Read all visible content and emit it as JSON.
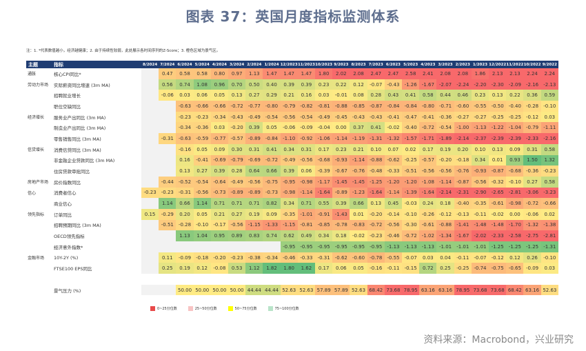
{
  "title": "图表 37：英国月度指标监测体系",
  "note": "注：1. *代表数值越小，经济越健康；2. 由于持续性较弱，此处展示各时间序列的Z-Score；3. 橙色区域为景气区。",
  "header": {
    "category": "主题",
    "indicator": "指标",
    "months": [
      "8/2024",
      "7/2024",
      "6/2024",
      "5/2024",
      "4/2024",
      "3/2024",
      "2/2024",
      "1/2024",
      "12/2023",
      "11/2023",
      "10/2023",
      "9/2023",
      "8/2023",
      "7/2023",
      "6/2023",
      "5/2023",
      "4/2023",
      "3/2023",
      "2/2023",
      "1/2023",
      "12/2022",
      "11/2022",
      "10/2022",
      "9/2022"
    ]
  },
  "colors": {
    "header_bg": "#1f3d73",
    "low": "#f8696b",
    "mid": "#ffeb84",
    "high": "#63be7b",
    "blank": "#f2f2f2"
  },
  "rows": [
    {
      "category": "通胀",
      "indicator": "核心CPI同比*",
      "lower_is_better": true,
      "values": [
        null,
        0.47,
        0.58,
        0.58,
        0.8,
        0.97,
        1.13,
        1.47,
        1.47,
        1.47,
        1.8,
        2.02,
        2.08,
        2.47,
        2.47,
        2.58,
        2.41,
        2.08,
        2.08,
        1.86,
        2.13,
        2.13,
        2.24,
        2.24
      ]
    },
    {
      "category": "劳动力市场",
      "indicator": "实际薪资同比增速 (3m MA)",
      "values": [
        null,
        0.56,
        0.74,
        1.08,
        0.96,
        0.7,
        0.5,
        0.4,
        0.39,
        0.39,
        0.23,
        0.22,
        0.12,
        -0.07,
        -0.43,
        -1.26,
        -1.67,
        -2.07,
        -2.24,
        -2.2,
        -2.3,
        -2.09,
        -2.16,
        -2.13
      ]
    },
    {
      "category": "",
      "indicator": "招聘就业增长",
      "values": [
        null,
        -0.06,
        0.03,
        0.06,
        0.05,
        0.13,
        0.27,
        0.29,
        0.21,
        0.16,
        0.03,
        -0.01,
        0.08,
        0.28,
        0.43,
        0.41,
        0.58,
        0.44,
        0.46,
        0.23,
        0.13,
        0.22,
        0.36,
        0.59
      ]
    },
    {
      "category": "",
      "indicator": "职位空缺同比",
      "values": [
        null,
        null,
        -0.63,
        -0.66,
        -0.66,
        -0.72,
        -0.77,
        -0.8,
        -0.79,
        -0.82,
        -0.81,
        -0.88,
        -0.85,
        -0.87,
        -0.84,
        -0.84,
        -0.8,
        -0.71,
        -0.6,
        -0.55,
        -0.5,
        -0.4,
        -0.28,
        -0.1
      ]
    },
    {
      "category": "经济增长",
      "indicator": "服务业产出同比 (3m MA)",
      "values": [
        null,
        null,
        -0.23,
        -0.23,
        -0.34,
        -0.43,
        -0.49,
        -0.54,
        -0.56,
        -0.54,
        -0.49,
        -0.45,
        -0.43,
        -0.43,
        -0.41,
        -0.47,
        -0.41,
        -0.36,
        -0.27,
        -0.27,
        -0.25,
        -0.25,
        -0.12,
        0.03
      ]
    },
    {
      "category": "",
      "indicator": "制造业产出同比 (3m MA)",
      "values": [
        null,
        null,
        -0.34,
        -0.36,
        0.03,
        -0.2,
        0.39,
        0.05,
        -0.06,
        -0.09,
        -0.04,
        0.0,
        0.37,
        0.41,
        -0.02,
        -0.4,
        -0.72,
        -0.54,
        -1.0,
        -1.13,
        -1.22,
        -1.04,
        -0.79,
        -1.11
      ]
    },
    {
      "category": "",
      "indicator": "零售销售同比 (3m MA)",
      "values": [
        null,
        -0.31,
        -0.63,
        -0.59,
        -0.77,
        -0.57,
        -0.89,
        -0.84,
        -1.1,
        -0.92,
        -1.06,
        -1.14,
        -1.19,
        -1.31,
        -1.32,
        -1.57,
        -1.71,
        -1.89,
        -2.14,
        -2.37,
        -2.39,
        -2.39,
        -2.33,
        -2.16
      ]
    },
    {
      "category": "信贷增长",
      "indicator": "消费信贷同比 (3m MA)",
      "values": [
        null,
        null,
        -0.16,
        0.05,
        0.09,
        0.3,
        0.31,
        0.41,
        0.34,
        0.31,
        0.17,
        0.23,
        0.21,
        0.1,
        0.07,
        0.02,
        0.17,
        0.19,
        0.2,
        0.1,
        0.13,
        0.09,
        0.31,
        0.58
      ]
    },
    {
      "category": "",
      "indicator": "非金融企业贷款同比 (3m MA)",
      "values": [
        null,
        null,
        0.16,
        -0.41,
        -0.69,
        -0.79,
        -0.69,
        -0.72,
        -0.49,
        -0.56,
        -0.68,
        -0.93,
        -1.14,
        -0.88,
        -0.62,
        -0.25,
        -0.57,
        -0.2,
        -0.18,
        0.34,
        0.01,
        0.93,
        1.5,
        1.32
      ]
    },
    {
      "category": "",
      "indicator": "住房贷款审批同比",
      "values": [
        null,
        null,
        0.13,
        0.27,
        0.39,
        0.28,
        0.64,
        0.66,
        0.39,
        0.06,
        -0.39,
        -0.67,
        -0.76,
        -0.48,
        -0.33,
        -0.51,
        -0.56,
        -0.56,
        -0.76,
        -0.93,
        -0.87,
        -0.68,
        -0.36,
        -0.23
      ]
    },
    {
      "category": "房地产市场",
      "indicator": "房价指数同比",
      "values": [
        null,
        -0.44,
        -0.52,
        -0.54,
        -0.64,
        -0.49,
        -0.56,
        -0.75,
        -0.95,
        -0.98,
        -1.17,
        -1.45,
        -1.45,
        -1.25,
        -1.2,
        -1.2,
        -1.08,
        -1.14,
        -0.87,
        -0.56,
        -0.32,
        -0.1,
        0.27,
        0.58
      ]
    },
    {
      "category": "信心",
      "indicator": "消费者信心",
      "values": [
        -0.23,
        -0.23,
        -0.31,
        -0.56,
        -0.73,
        -0.89,
        -0.89,
        -0.73,
        -0.98,
        -1.14,
        -1.64,
        -0.89,
        -1.23,
        -1.64,
        -1.14,
        -1.39,
        -1.64,
        -2.14,
        -2.31,
        -2.9,
        -2.65,
        -2.81,
        -3.06,
        -3.23
      ]
    },
    {
      "category": "",
      "indicator": "商业信心",
      "values": [
        null,
        1.14,
        0.66,
        1.14,
        0.71,
        0.71,
        0.71,
        0.82,
        0.34,
        0.71,
        0.55,
        0.39,
        0.66,
        0.13,
        0.45,
        -0.03,
        0.24,
        0.18,
        -0.4,
        -0.35,
        -0.61,
        -0.98,
        -0.72,
        -0.66
      ]
    },
    {
      "category": "领先指标",
      "indicator": "订单同比",
      "values": [
        0.15,
        -0.29,
        0.2,
        0.05,
        0.21,
        0.27,
        0.19,
        0.09,
        -0.35,
        -1.01,
        -0.91,
        -1.43,
        0.01,
        -0.2,
        -0.14,
        -0.1,
        -0.26,
        -0.12,
        -0.13,
        -0.11,
        -0.02,
        0.0,
        -0.06,
        0.02
      ]
    },
    {
      "category": "",
      "indicator": "招聘预期同比 (3m MA)",
      "values": [
        null,
        -0.51,
        -0.28,
        -0.1,
        -0.17,
        -0.56,
        -1.15,
        -1.33,
        -1.15,
        -0.81,
        -0.85,
        -0.78,
        -0.83,
        -0.72,
        -0.56,
        -0.3,
        -0.61,
        -0.88,
        -1.41,
        -1.48,
        -1.48,
        -1.7,
        -1.32,
        -1.38
      ]
    },
    {
      "category": "",
      "indicator": "OECD领先指标",
      "values": [
        null,
        null,
        1.13,
        1.04,
        0.95,
        0.89,
        0.83,
        0.74,
        0.62,
        0.49,
        0.34,
        0.18,
        -0.02,
        -0.23,
        -0.46,
        -0.72,
        -1.02,
        -1.34,
        -1.67,
        -2.02,
        -2.33,
        -2.58,
        -2.75,
        -2.81
      ]
    },
    {
      "category": "",
      "indicator": "经济意外指数*",
      "lower_is_better": true,
      "values": [
        null,
        null,
        null,
        null,
        null,
        null,
        null,
        null,
        -0.95,
        -0.95,
        -0.95,
        -0.95,
        -0.95,
        -0.95,
        -1.13,
        -1.13,
        -1.13,
        -1.01,
        -1.01,
        -1.01,
        -1.25,
        -1.25,
        -1.25,
        -1.31
      ]
    },
    {
      "category": "金融市场",
      "indicator": "10Y-2Y (%)",
      "values": [
        null,
        0.11,
        -0.09,
        -0.18,
        -0.2,
        -0.23,
        -0.38,
        -0.34,
        -0.46,
        -0.33,
        -0.31,
        -0.62,
        -0.6,
        -0.78,
        -0.55,
        -0.07,
        0.03,
        0.04,
        -0.11,
        -0.07,
        -0.12,
        0.12,
        0.26,
        -0.1
      ]
    },
    {
      "category": "",
      "indicator": "FTSE100 EPS同比",
      "values": [
        null,
        0.25,
        0.19,
        0.12,
        -0.08,
        0.53,
        1.12,
        1.82,
        1.8,
        1.62,
        0.17,
        0.06,
        0.05,
        -0.16,
        -0.11,
        -0.15,
        0.72,
        0.25,
        -0.25,
        -0.74,
        -0.75,
        -0.65,
        -0.09,
        0.03
      ]
    }
  ],
  "pressure": {
    "indicator": "景气压力 (%)",
    "values": [
      null,
      null,
      50.0,
      50.0,
      50.0,
      50.0,
      44.44,
      44.44,
      52.63,
      52.63,
      57.89,
      57.89,
      52.63,
      68.42,
      73.68,
      78.95,
      63.16,
      63.16,
      78.95,
      73.68,
      73.68,
      68.42,
      63.16,
      52.63
    ]
  },
  "legend": [
    {
      "label": "0~25分位数",
      "color": "#e84a4a"
    },
    {
      "label": "25~50分位数",
      "color": "#f8c4c4"
    },
    {
      "label": "50~75分位数",
      "color": "#ffff00"
    },
    {
      "label": "75~100分位数",
      "color": "#b9e4c9"
    }
  ],
  "source": "资料来源：Macrobond，兴业研究"
}
